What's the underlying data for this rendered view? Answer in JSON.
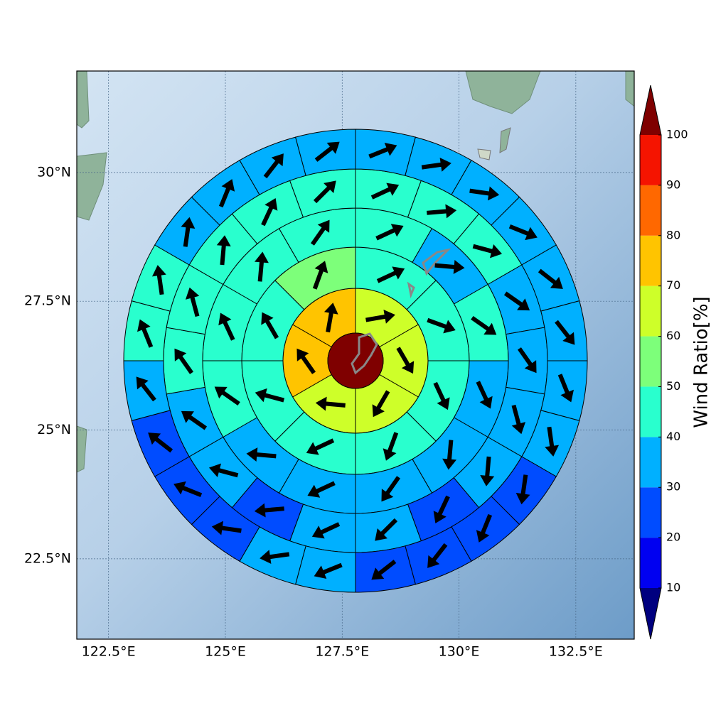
{
  "chart_data": {
    "type": "polar-sectors",
    "xlim": [
      121.82,
      133.75
    ],
    "ylim": [
      20.94,
      31.97
    ],
    "xticks": [
      {
        "value": 122.5,
        "label": "122.5°E"
      },
      {
        "value": 125,
        "label": "125°E"
      },
      {
        "value": 127.5,
        "label": "127.5°E"
      },
      {
        "value": 130,
        "label": "130°E"
      },
      {
        "value": 132.5,
        "label": "132.5°E"
      }
    ],
    "yticks": [
      {
        "value": 22.5,
        "label": "22.5°N"
      },
      {
        "value": 25,
        "label": "25°N"
      },
      {
        "value": 27.5,
        "label": "27.5°N"
      },
      {
        "value": 30,
        "label": "30°N"
      }
    ],
    "grid": true,
    "center_value": 105,
    "rings": [
      {
        "values": [
          65,
          65,
          65,
          65,
          75,
          75
        ],
        "directions": [
          10,
          -60,
          -120,
          175,
          125,
          80
        ]
      },
      {
        "values": [
          45,
          45,
          45,
          45,
          45,
          45,
          45,
          55
        ],
        "directions": [
          25,
          -20,
          -65,
          -110,
          -155,
          165,
          120,
          70
        ]
      },
      {
        "values": [
          45,
          35,
          45,
          35,
          35,
          35,
          35,
          35,
          45,
          45,
          45,
          45
        ],
        "directions": [
          25,
          -5,
          -35,
          -65,
          -95,
          -125,
          -155,
          175,
          145,
          115,
          85,
          55
        ]
      },
      {
        "values": [
          45,
          45,
          45,
          35,
          35,
          35,
          35,
          25,
          35,
          35,
          25,
          35,
          35,
          45,
          45,
          45,
          45,
          45
        ],
        "directions": [
          25,
          5,
          -15,
          -35,
          -55,
          -75,
          -95,
          -115,
          -135,
          -155,
          -175,
          165,
          145,
          125,
          105,
          85,
          65,
          45
        ]
      },
      {
        "values": [
          35,
          35,
          35,
          35,
          35,
          35,
          35,
          35,
          25,
          25,
          25,
          25,
          35,
          35,
          25,
          25,
          25,
          35,
          45,
          45,
          35,
          35,
          35,
          35
        ],
        "directions": [
          22,
          8,
          -8,
          -22,
          -38,
          -52,
          -68,
          -82,
          -98,
          -112,
          -128,
          -142,
          -158,
          -172,
          172,
          158,
          142,
          128,
          112,
          98,
          82,
          68,
          52,
          38
        ]
      }
    ],
    "colorbar": {
      "label": "Wind Ratio[%]",
      "levels": [
        10,
        20,
        30,
        40,
        50,
        60,
        70,
        80,
        90,
        100
      ],
      "colors": [
        "#00007f",
        "#0000f1",
        "#004cff",
        "#00b0ff",
        "#29ffce",
        "#7dff7a",
        "#ceff29",
        "#ffc400",
        "#ff6800",
        "#f51400",
        "#7f0000"
      ],
      "extend": "both"
    }
  }
}
